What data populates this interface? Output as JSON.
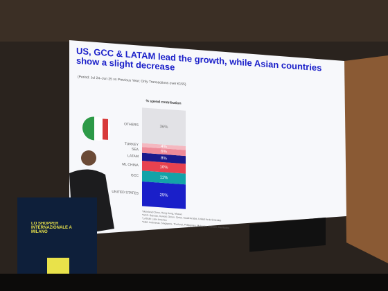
{
  "chart_data": {
    "type": "stacked-bar",
    "title": "US, GCC & LATAM lead the growth, while Asian countries show a slight decrease",
    "subtitle": "(Period: Jul 24–Jun 25 vs Previous Year; Only Transactions over €155)",
    "y_label": "% spend contribution",
    "categories": [
      "UNITED STATES",
      "GCC",
      "ML CHINA",
      "LATAM",
      "SEA",
      "TURKEY",
      "OTHERS"
    ],
    "values": [
      25,
      11,
      10,
      8,
      6,
      4,
      36
    ],
    "value_labels": [
      "25%",
      "11%",
      "10%",
      "8%",
      "6%",
      "4%",
      "36%"
    ],
    "colors": [
      "#1a1fc9",
      "#14a3a8",
      "#e8424f",
      "#1a1a8c",
      "#ee8a98",
      "#f4b8c0",
      "#e2e2e6"
    ],
    "ylim": [
      0,
      100
    ],
    "footnotes": [
      "*Mainland China, Hong Kong, Macao",
      "*GCC: Bahrain, Kuwait, Oman, Qatar, Saudi Arabia, United Arab Emirates",
      "*LATAM: Latin America",
      "*SEA: Indonesia, Singapore, Thailand, Philippines, Malaysia, Vietnam, Cambodia"
    ]
  },
  "podium": {
    "text": "LO SHOPPER INTERNAZIONALE A MILANO"
  }
}
